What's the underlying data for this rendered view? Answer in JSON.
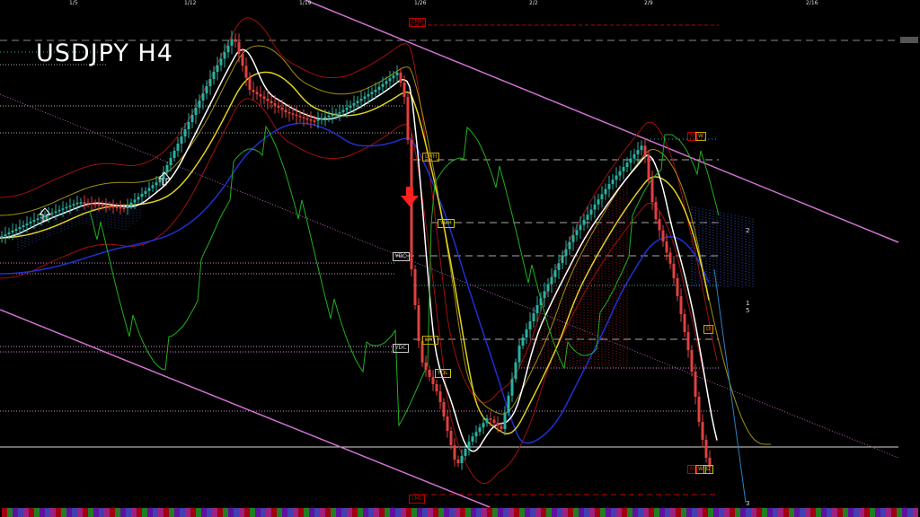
{
  "title": "USDJPY H4",
  "chart_data": {
    "type": "candlestick",
    "symbol": "USDJPY",
    "timeframe": "H4",
    "x_tick_labels": [
      "1/5",
      "1/12",
      "1/19",
      "1/26",
      "2/2",
      "2/9",
      "2/16"
    ],
    "grid": false,
    "levels": [
      {
        "label": "LMH",
        "color": "#c00000"
      },
      {
        "label": "LWH",
        "color": "#c8a000"
      },
      {
        "label": "YDH",
        "color": "#c8c800"
      },
      {
        "label": "YDO",
        "color": "#cccccc"
      },
      {
        "label": "YDC",
        "color": "#cccccc"
      },
      {
        "label": "LWL",
        "color": "#c8a000"
      },
      {
        "label": "YDL",
        "color": "#c8c800"
      },
      {
        "label": "LML",
        "color": "#c00000"
      }
    ],
    "mwd_top": [
      "M",
      "W"
    ],
    "mwd_bottom": [
      "M",
      "W",
      "D"
    ],
    "d_label": "D",
    "wave_labels": [
      "2",
      "1",
      "5",
      "3"
    ],
    "colors": {
      "bull": "#2ab0a0",
      "bear": "#e04040",
      "channel": "#d070d0",
      "ma_fast": "#ffffff",
      "ma_mid": "#e0d020",
      "ma_slow": "#2030d0",
      "oscillator": "#20b020",
      "cloud_bull": "#3050c0",
      "cloud_bear": "#c02020"
    }
  }
}
